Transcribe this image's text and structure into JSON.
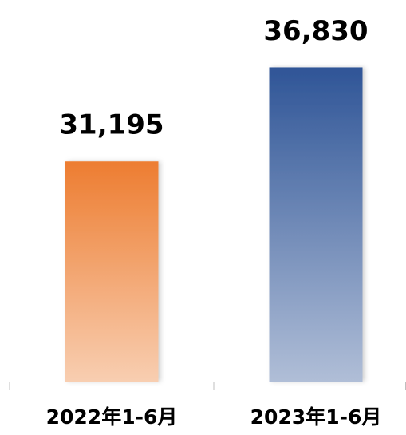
{
  "chart_data": {
    "type": "bar",
    "categories": [
      "2022年1-6月",
      "2023年1-6月"
    ],
    "values": [
      31195,
      36830
    ],
    "value_labels": [
      "31,195",
      "36,830"
    ],
    "colors": [
      "#ed7d31",
      "#2f5597"
    ],
    "ylim": [
      18000,
      38000
    ]
  }
}
